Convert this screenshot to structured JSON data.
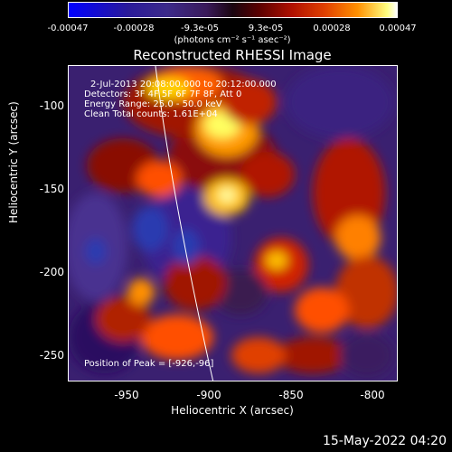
{
  "colorbar": {
    "ticks": [
      "-0.00047",
      "-0.00028",
      "-9.3e-05",
      "9.3e-05",
      "0.00028",
      "0.00047"
    ],
    "units": "(photons cm⁻² s⁻¹ asec⁻²)"
  },
  "title": "Reconstructed RHESSI Image",
  "annotations": {
    "time": "2-Jul-2013 20:08:00.000 to 20:12:00.000",
    "detectors": "Detectors: 3F 4F 5F 6F 7F 8F, Att 0",
    "energy": "Energy Range: 25.0 - 50.0 keV",
    "clean": "Clean     Total counts: 1.61E+04",
    "peak": "Position of Peak = [-926,-96]"
  },
  "axes": {
    "xlabel": "Heliocentric X (arcsec)",
    "ylabel": "Heliocentric Y (arcsec)",
    "xticks": [
      "-950",
      "-900",
      "-850",
      "-800"
    ],
    "yticks": [
      "-100",
      "-150",
      "-200",
      "-250"
    ]
  },
  "timestamp": "15-May-2022 04:20"
}
